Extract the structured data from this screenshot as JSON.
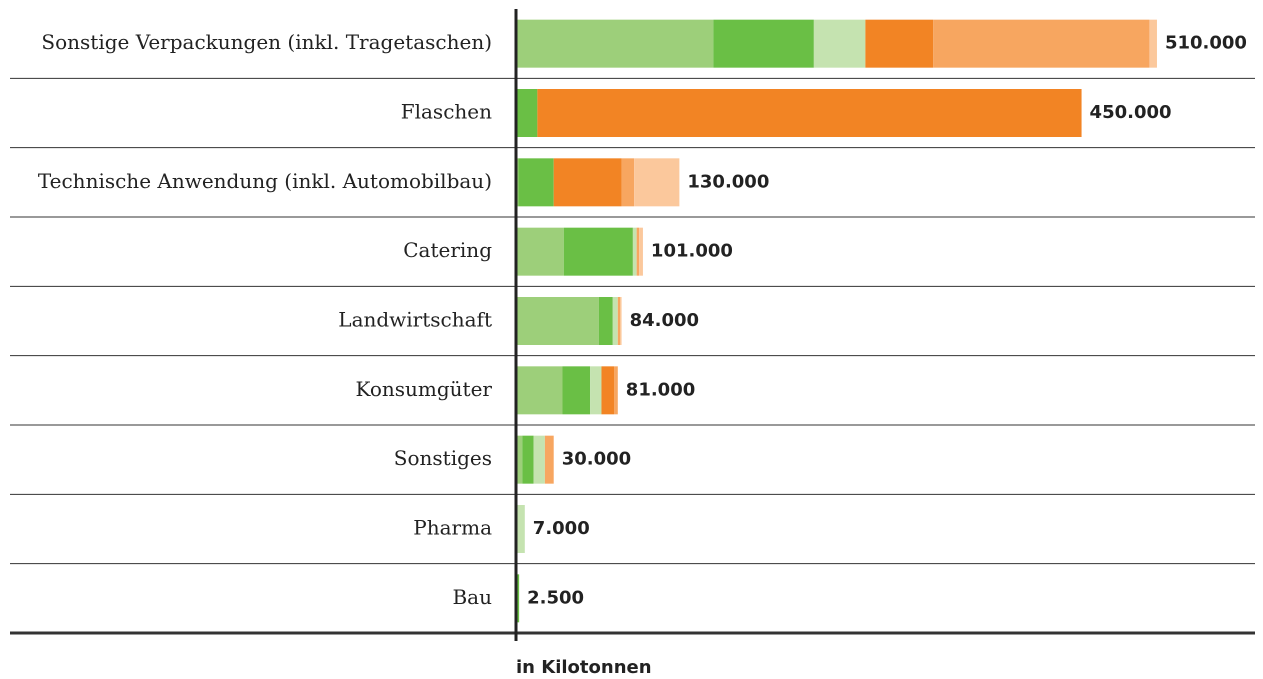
{
  "chart_data": {
    "type": "stacked-barh",
    "xlabel": "in Kilotonnen",
    "categories": [
      "Sonstige Verpackungen (inkl. Tragetaschen)",
      "Flaschen",
      "Technische Anwendung (inkl. Automobilbau)",
      "Catering",
      "Landwirtschaft",
      "Konsumgüter",
      "Sonstiges",
      "Pharma",
      "Bau"
    ],
    "series": [
      {
        "color": "#9dcf7a",
        "values": [
          157000,
          0,
          2000,
          38000,
          66000,
          37000,
          5000,
          0,
          0
        ]
      },
      {
        "color": "#6abf45",
        "values": [
          80000,
          17000,
          28000,
          55000,
          11000,
          22000,
          9000,
          0,
          2500
        ]
      },
      {
        "color": "#c5e3b0",
        "values": [
          41000,
          0,
          0,
          3000,
          4000,
          9000,
          9000,
          7000,
          0
        ]
      },
      {
        "color": "#f28424",
        "values": [
          54000,
          433000,
          54000,
          0,
          0,
          10000,
          0,
          0,
          0
        ]
      },
      {
        "color": "#f7a660",
        "values": [
          172000,
          0,
          10000,
          2000,
          2000,
          3000,
          7000,
          0,
          0
        ]
      },
      {
        "color": "#fbc89c",
        "values": [
          6000,
          0,
          36000,
          3000,
          1000,
          0,
          0,
          0,
          0
        ]
      }
    ],
    "values": [
      510000,
      450000,
      130000,
      101000,
      84000,
      81000,
      30000,
      7000,
      2500
    ],
    "value_labels": [
      "510.000",
      "450.000",
      "130.000",
      "101.000",
      "84.000",
      "81.000",
      "30.000",
      "7.000",
      "2.500"
    ],
    "xlim": [
      0,
      588000
    ]
  }
}
